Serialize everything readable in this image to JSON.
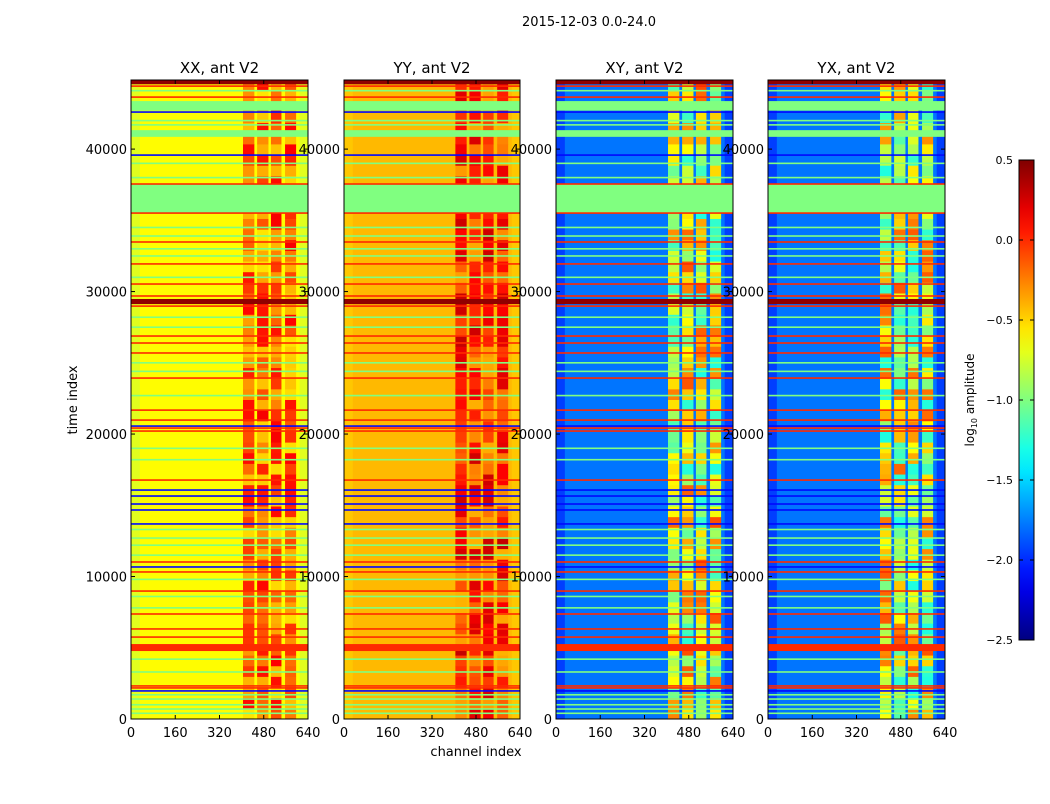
{
  "chart_data": {
    "type": "heatmap",
    "title": "2015-12-03 0.0-24.0",
    "xlabel": "channel index",
    "ylabel": "time index",
    "xlim": [
      0,
      640
    ],
    "ylim": [
      0,
      44850
    ],
    "xticks": [
      "0",
      "160",
      "320",
      "480",
      "640"
    ],
    "yticks": [
      "0",
      "10000",
      "20000",
      "30000",
      "40000"
    ],
    "colorbar": {
      "label_main": "log",
      "label_sub": "10",
      "label_rest": " amplitude",
      "range": [
        -2.5,
        0.5
      ],
      "ticks": [
        "0.5",
        "0.0",
        "−0.5",
        "−1.0",
        "−1.5",
        "−2.0",
        "−2.5"
      ],
      "tick_values": [
        0.5,
        0.0,
        -0.5,
        -1.0,
        -1.5,
        -2.0,
        -2.5
      ],
      "colormap": "jet"
    },
    "rfi_channel_blocks": [
      [
        405,
        446
      ],
      [
        456,
        497
      ],
      [
        506,
        544
      ],
      [
        557,
        597
      ]
    ],
    "panels": [
      {
        "title": "XX, ant V2",
        "base_value": -0.62,
        "edge_value": -0.8,
        "rfi_value": -0.2,
        "rfi_spread": 0.35
      },
      {
        "title": "YY, ant V2",
        "base_value": -0.42,
        "edge_value": -0.5,
        "rfi_value": -0.05,
        "rfi_spread": 0.35
      },
      {
        "title": "XY, ant V2",
        "base_value": -1.78,
        "edge_value": -2.1,
        "rfi_value": -0.7,
        "rfi_spread": 0.6
      },
      {
        "title": "YX, ant V2",
        "base_value": -1.78,
        "edge_value": -2.1,
        "rfi_value": -0.7,
        "rfi_spread": 0.6
      }
    ],
    "flagged_bands": [
      {
        "t0": 42700,
        "t1": 43370,
        "value": -1.0
      },
      {
        "t0": 40860,
        "t1": 41330,
        "value": -1.0
      },
      {
        "t0": 35530,
        "t1": 37520,
        "value": -1.0
      },
      {
        "t0": 44550,
        "t1": 44850,
        "value": 0.45
      },
      {
        "t0": 29120,
        "t1": 29480,
        "value": 0.45
      },
      {
        "t0": 4770,
        "t1": 5260,
        "value": 0.0
      }
    ],
    "red_rows": [
      44420,
      43650,
      37550,
      35510,
      33480,
      31940,
      30530,
      29690,
      28980,
      26880,
      26390,
      25690,
      23930,
      21680,
      20980,
      20420,
      20210,
      16770,
      11020,
      10320,
      8980,
      7370,
      6320,
      5750,
      2320,
      2180
    ],
    "blue_rows": [
      42600,
      39580,
      20560,
      16070,
      15650,
      15090,
      14670,
      13690,
      10670,
      1970
    ],
    "green_rows": [
      44100,
      42000,
      41700,
      39000,
      38000,
      34500,
      33900,
      33000,
      32500,
      31000,
      28200,
      27500,
      25000,
      24400,
      22700,
      19000,
      18200,
      13300,
      12700,
      12200,
      11500,
      9800,
      8600,
      7800,
      4200,
      3300,
      1700,
      1400,
      1000,
      700,
      400
    ],
    "row_values": {
      "red": 0.0,
      "blue": -2.1,
      "green": -1.0
    }
  }
}
